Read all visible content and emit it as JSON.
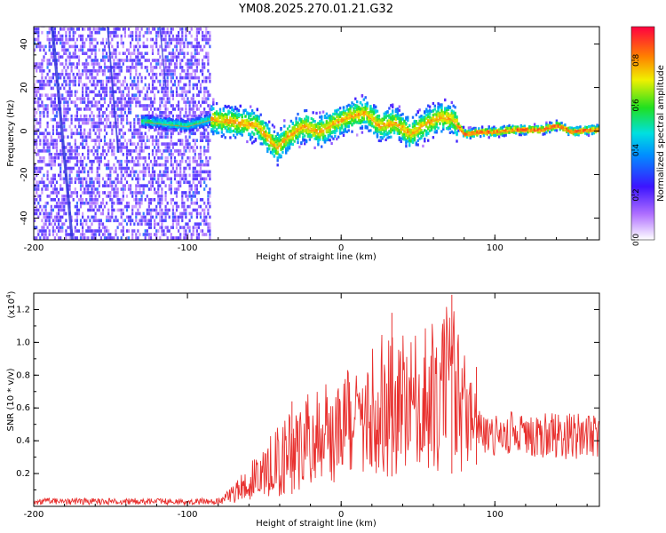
{
  "title": "YM08.2025.270.01.21.G32",
  "chart_data": [
    {
      "type": "heatmap",
      "name": "spectrogram",
      "xlabel": "Height of straight line (km)",
      "ylabel": "Frequency (Hz)",
      "xlim": [
        -200,
        168
      ],
      "ylim": [
        -50,
        48
      ],
      "xticks": [
        -200,
        -100,
        0,
        100
      ],
      "yticks": [
        -40,
        -20,
        0,
        20,
        40
      ],
      "ridge": [
        {
          "x": -128,
          "y": 4
        },
        {
          "x": -115,
          "y": 3
        },
        {
          "x": -100,
          "y": 2
        },
        {
          "x": -85,
          "y": 5
        },
        {
          "x": -75,
          "y": 4
        },
        {
          "x": -65,
          "y": 3
        },
        {
          "x": -55,
          "y": 2
        },
        {
          "x": -48,
          "y": -4
        },
        {
          "x": -42,
          "y": -8
        },
        {
          "x": -35,
          "y": -3
        },
        {
          "x": -25,
          "y": 2
        },
        {
          "x": -15,
          "y": -1
        },
        {
          "x": -5,
          "y": 3
        },
        {
          "x": 5,
          "y": 6
        },
        {
          "x": 15,
          "y": 8
        },
        {
          "x": 25,
          "y": 2
        },
        {
          "x": 35,
          "y": 3
        },
        {
          "x": 45,
          "y": -2
        },
        {
          "x": 55,
          "y": 3
        },
        {
          "x": 65,
          "y": 6
        },
        {
          "x": 72,
          "y": 5
        },
        {
          "x": 80,
          "y": -2
        },
        {
          "x": 90,
          "y": -1
        },
        {
          "x": 100,
          "y": -1
        },
        {
          "x": 110,
          "y": 0
        },
        {
          "x": 120,
          "y": 0
        },
        {
          "x": 130,
          "y": 0
        },
        {
          "x": 140,
          "y": 2
        },
        {
          "x": 150,
          "y": -1
        },
        {
          "x": 160,
          "y": 0
        },
        {
          "x": 168,
          "y": 0
        }
      ],
      "noise_region_x": [
        -200,
        -85
      ],
      "colorbar": {
        "label": "Normalized spectral amplitude",
        "range": [
          0.0,
          0.95
        ],
        "ticks": [
          0.0,
          0.2,
          0.4,
          0.6,
          0.8
        ],
        "tick_labels": [
          "0.0",
          "0.2",
          "0.4",
          "0.6",
          "0.8"
        ]
      }
    },
    {
      "type": "line",
      "name": "snr",
      "xlabel": "Height of straight line (km)",
      "ylabel": "SNR (10 * v/v)",
      "multiplier": "(x10",
      "multiplier_exp": "4",
      "xlim": [
        -200,
        168
      ],
      "ylim": [
        0,
        1.3
      ],
      "xticks": [
        -200,
        -100,
        0,
        100
      ],
      "yticks": [
        0.2,
        0.4,
        0.6,
        0.8,
        1.0,
        1.2
      ],
      "ytick_labels": [
        "0.2",
        "0.4",
        "0.6",
        "0.8",
        "1.0",
        "1.2"
      ],
      "color": "#e8302e",
      "envelope": [
        {
          "x": -200,
          "lo": 0.01,
          "hi": 0.05
        },
        {
          "x": -80,
          "lo": 0.01,
          "hi": 0.05
        },
        {
          "x": -70,
          "lo": 0.02,
          "hi": 0.15
        },
        {
          "x": -60,
          "lo": 0.03,
          "hi": 0.25
        },
        {
          "x": -45,
          "lo": 0.05,
          "hi": 0.45
        },
        {
          "x": -30,
          "lo": 0.08,
          "hi": 0.6
        },
        {
          "x": -20,
          "lo": 0.12,
          "hi": 0.7
        },
        {
          "x": 0,
          "lo": 0.15,
          "hi": 0.8
        },
        {
          "x": 30,
          "lo": 0.18,
          "hi": 1.15
        },
        {
          "x": 50,
          "lo": 0.2,
          "hi": 1.05
        },
        {
          "x": 72,
          "lo": 0.2,
          "hi": 1.25
        },
        {
          "x": 85,
          "lo": 0.22,
          "hi": 0.75
        },
        {
          "x": 92,
          "lo": 0.3,
          "hi": 0.55
        },
        {
          "x": 110,
          "lo": 0.32,
          "hi": 0.58
        },
        {
          "x": 140,
          "lo": 0.28,
          "hi": 0.58
        },
        {
          "x": 168,
          "lo": 0.3,
          "hi": 0.55
        }
      ],
      "peaks": [
        {
          "x": -32,
          "y": 0.64
        },
        {
          "x": 33,
          "y": 1.18
        },
        {
          "x": 72,
          "y": 1.29
        },
        {
          "x": 88,
          "y": 0.85
        }
      ]
    }
  ]
}
